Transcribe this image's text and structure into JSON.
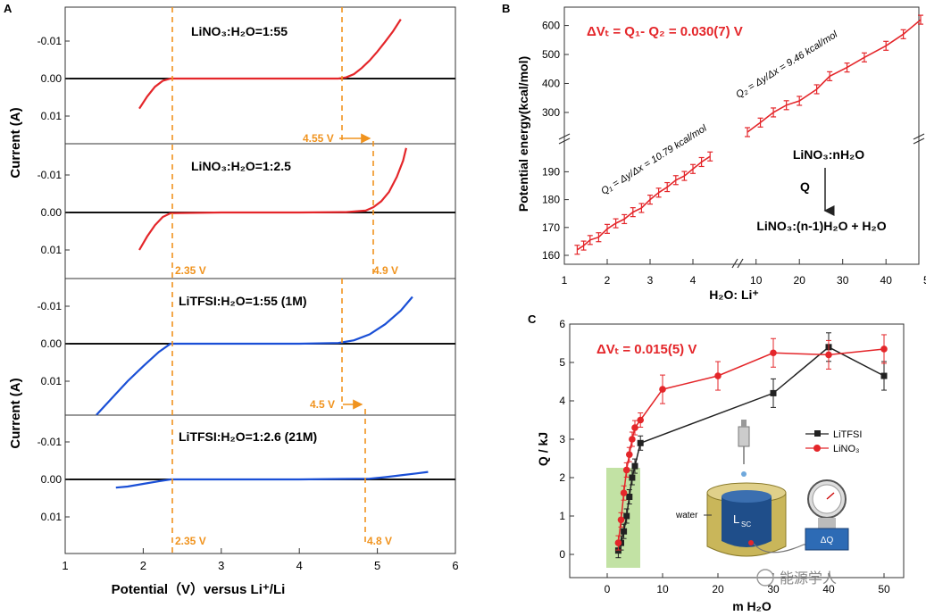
{
  "panel_labels": {
    "a": "A",
    "b": "B",
    "c": "C"
  },
  "colors": {
    "red": "#e4262a",
    "blue": "#1a4fd6",
    "orange": "#f0931e",
    "black": "#222222",
    "green_band": "#8fca5a"
  },
  "chart_data": [
    {
      "type": "line",
      "panel": "A",
      "xlabel": "Potential（V）versus Li⁺/Li",
      "ylabel_top": "Current (A)",
      "ylabel_bottom": "Current (A)",
      "x_ticks": [
        "1",
        "2",
        "3",
        "4",
        "5",
        "6"
      ],
      "y_ticks": [
        "-0.01",
        "0.00",
        "0.01"
      ],
      "xlim": [
        1,
        6
      ],
      "subplots": [
        {
          "title": "LiNO₃:H₂O=1:55",
          "color": "red",
          "x": [
            1.95,
            2.05,
            2.15,
            2.25,
            2.35,
            3.0,
            4.0,
            4.5,
            4.6,
            4.7,
            4.8,
            4.9,
            5.0,
            5.1,
            5.2,
            5.3
          ],
          "y": [
            0.008,
            0.0048,
            0.0022,
            0.0006,
            0.0,
            0.0,
            0.0,
            0.0,
            -0.0003,
            -0.0012,
            -0.0028,
            -0.0048,
            -0.0072,
            -0.0098,
            -0.0126,
            -0.0158
          ]
        },
        {
          "title": "LiNO₃:H₂O=1:2.5",
          "color": "red",
          "x": [
            1.95,
            2.05,
            2.15,
            2.25,
            2.35,
            3.0,
            4.0,
            4.6,
            4.85,
            4.95,
            5.05,
            5.15,
            5.25,
            5.33,
            5.37
          ],
          "y": [
            0.01,
            0.0064,
            0.0034,
            0.0012,
            0.0002,
            0.0,
            0.0,
            -0.0001,
            -0.0005,
            -0.0014,
            -0.003,
            -0.0055,
            -0.0095,
            -0.0138,
            -0.0172
          ]
        },
        {
          "title": "LiTFSI:H₂O=1:55 (1M)",
          "color": "blue",
          "x": [
            1.4,
            1.6,
            1.8,
            2.0,
            2.2,
            2.35,
            3.0,
            4.0,
            4.5,
            4.7,
            4.9,
            5.1,
            5.3,
            5.45
          ],
          "y": [
            0.019,
            0.0145,
            0.01,
            0.006,
            0.0022,
            0.0,
            0.0,
            0.0,
            -0.0002,
            -0.0009,
            -0.0025,
            -0.0052,
            -0.0088,
            -0.0125
          ]
        },
        {
          "title": "LiTFSI:H₂O=1:2.6 (21M)",
          "color": "blue",
          "x": [
            1.65,
            1.8,
            2.0,
            2.2,
            2.35,
            3.0,
            4.0,
            4.9,
            5.1,
            5.3,
            5.5,
            5.65
          ],
          "y": [
            0.0022,
            0.0019,
            0.0012,
            0.0005,
            0.0,
            0.0,
            0.0,
            -0.0002,
            -0.0006,
            -0.0011,
            -0.0016,
            -0.002
          ]
        }
      ],
      "annotations": [
        {
          "text": "4.55 V",
          "x": 4.55
        },
        {
          "text": "2.35 V",
          "x": 2.35
        },
        {
          "text": "4.9 V",
          "x": 4.9
        },
        {
          "text": "4.5 V",
          "x": 4.5
        },
        {
          "text": "2.35 V",
          "x": 2.35
        },
        {
          "text": "4.8 V",
          "x": 4.8
        }
      ]
    },
    {
      "type": "scatter",
      "panel": "B",
      "title": "ΔVₜ = Q₁- Q₂ = 0.030(7)  V",
      "xlabel": "H₂O: Li⁺",
      "ylabel": "Potential energy(kcal/mol)",
      "x_ticks_left": [
        "1",
        "2",
        "3",
        "4"
      ],
      "x_ticks_right": [
        "10",
        "20",
        "30",
        "40",
        "50"
      ],
      "y_ticks_bottom": [
        "160",
        "170",
        "180",
        "190"
      ],
      "y_ticks_top": [
        "300",
        "400",
        "500",
        "600"
      ],
      "series": [
        {
          "name": "low",
          "x": [
            1.3,
            1.45,
            1.6,
            1.8,
            2.0,
            2.2,
            2.4,
            2.6,
            2.8,
            3.0,
            3.2,
            3.4,
            3.6,
            3.8,
            4.0,
            4.2,
            4.4
          ],
          "y": [
            162.0,
            163.5,
            165.5,
            166.5,
            169.5,
            171.5,
            173.0,
            175.5,
            177.0,
            180.0,
            182.5,
            184.5,
            187.0,
            188.5,
            191.0,
            193.5,
            195.5
          ]
        },
        {
          "name": "high",
          "x": [
            8,
            11,
            14,
            17,
            20,
            24,
            27,
            31,
            35,
            40,
            44,
            48
          ],
          "y": [
            232,
            265,
            300,
            325,
            340,
            380,
            425,
            455,
            490,
            530,
            570,
            620
          ]
        }
      ],
      "fit_labels": [
        "Q₁ = Δy/Δx = 10.79 kcal/mol",
        "Q₂ = Δy/Δx = 9.46 kcal/mol"
      ],
      "reaction": {
        "top": "LiNO₃:nH₂O",
        "arrow_label": "Q",
        "bottom": "LiNO₃:(n-1)H₂O + H₂O"
      }
    },
    {
      "type": "line",
      "panel": "C",
      "title": "ΔVₜ = 0.015(5) V",
      "xlabel": "m H₂O",
      "ylabel": "Q / kJ",
      "xlim": [
        -5,
        52
      ],
      "ylim": [
        -0.3,
        6
      ],
      "x_ticks": [
        "0",
        "10",
        "20",
        "30",
        "40",
        "50"
      ],
      "y_ticks": [
        "0",
        "1",
        "2",
        "3",
        "4",
        "5",
        "6"
      ],
      "series": [
        {
          "name": "LiTFSI",
          "color": "black",
          "x": [
            2.0,
            2.5,
            3.0,
            3.5,
            4.0,
            4.5,
            5.0,
            6.0,
            30.0,
            40.0,
            50.0
          ],
          "y": [
            0.1,
            0.3,
            0.6,
            1.0,
            1.5,
            2.0,
            2.3,
            2.9,
            4.2,
            5.4,
            4.65
          ]
        },
        {
          "name": "LiNO₃",
          "color": "red",
          "x": [
            2.0,
            2.5,
            3.0,
            3.5,
            4.0,
            4.5,
            5.0,
            6.0,
            10.0,
            20.0,
            30.0,
            40.0,
            50.0
          ],
          "y": [
            0.3,
            0.9,
            1.6,
            2.2,
            2.6,
            3.0,
            3.3,
            3.5,
            4.3,
            4.65,
            5.25,
            5.2,
            5.35
          ]
        }
      ],
      "legend": [
        "LiTFSI",
        "LiNO₃"
      ],
      "inset": {
        "water_label": "water",
        "vessel_label": "L",
        "vessel_sub": "SC",
        "meter_label": "ΔQ"
      }
    }
  ],
  "watermark": "能源学人"
}
